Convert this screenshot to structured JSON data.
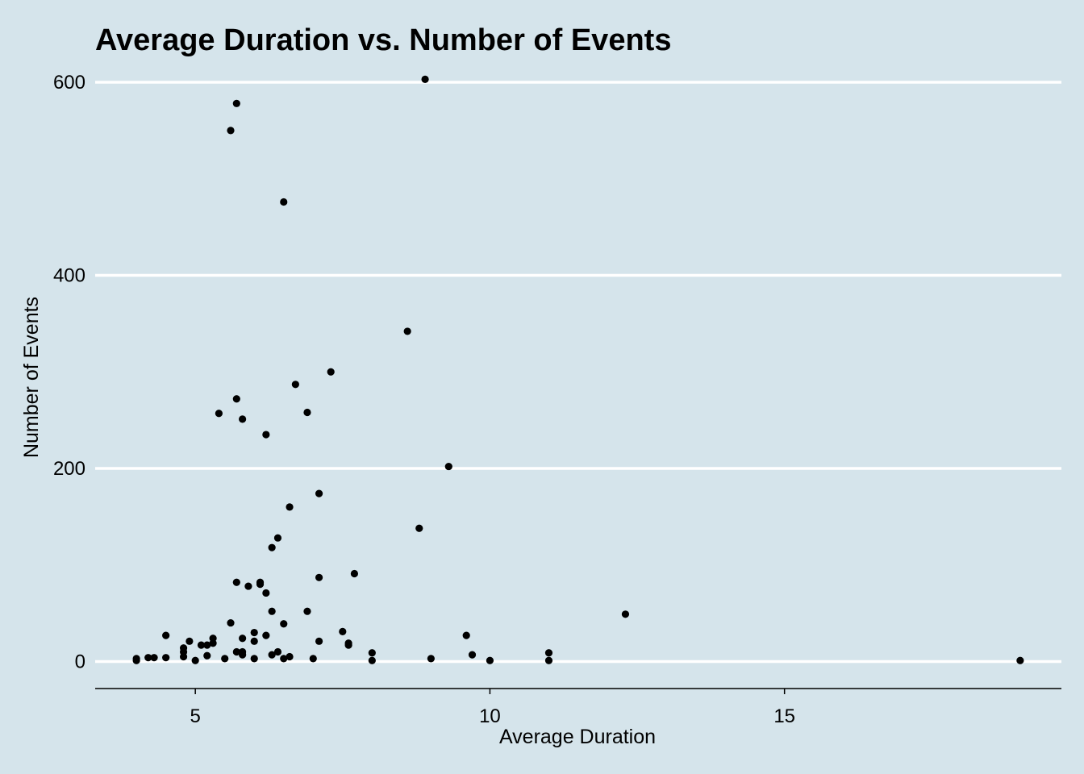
{
  "chart_data": {
    "type": "scatter",
    "title": "Average Duration vs. Number of Events",
    "xlabel": "Average Duration",
    "ylabel": "Number of Events",
    "xlim": [
      3.3,
      19.7
    ],
    "ylim": [
      -28,
      610
    ],
    "xticks": [
      5,
      10,
      15
    ],
    "yticks": [
      0,
      200,
      400,
      600
    ],
    "grid": "horizontal-major",
    "colors": {
      "background": "#d5e4eb",
      "grid": "#ffffff",
      "point": "#000000",
      "axis": "#000000"
    },
    "points": [
      {
        "x": 4.0,
        "y": 3
      },
      {
        "x": 4.0,
        "y": 1
      },
      {
        "x": 4.2,
        "y": 4
      },
      {
        "x": 4.3,
        "y": 4
      },
      {
        "x": 4.5,
        "y": 4
      },
      {
        "x": 4.5,
        "y": 27
      },
      {
        "x": 4.8,
        "y": 5
      },
      {
        "x": 4.8,
        "y": 10
      },
      {
        "x": 4.8,
        "y": 14
      },
      {
        "x": 4.9,
        "y": 21
      },
      {
        "x": 5.0,
        "y": 1
      },
      {
        "x": 5.1,
        "y": 17
      },
      {
        "x": 5.2,
        "y": 6
      },
      {
        "x": 5.2,
        "y": 17
      },
      {
        "x": 5.3,
        "y": 19
      },
      {
        "x": 5.3,
        "y": 24
      },
      {
        "x": 5.4,
        "y": 257
      },
      {
        "x": 5.5,
        "y": 3
      },
      {
        "x": 5.6,
        "y": 40
      },
      {
        "x": 5.6,
        "y": 550
      },
      {
        "x": 5.7,
        "y": 10
      },
      {
        "x": 5.7,
        "y": 82
      },
      {
        "x": 5.7,
        "y": 272
      },
      {
        "x": 5.7,
        "y": 578
      },
      {
        "x": 5.8,
        "y": 7
      },
      {
        "x": 5.8,
        "y": 10
      },
      {
        "x": 5.8,
        "y": 24
      },
      {
        "x": 5.8,
        "y": 251
      },
      {
        "x": 5.9,
        "y": 78
      },
      {
        "x": 6.0,
        "y": 3
      },
      {
        "x": 6.0,
        "y": 21
      },
      {
        "x": 6.0,
        "y": 30
      },
      {
        "x": 6.1,
        "y": 80
      },
      {
        "x": 6.1,
        "y": 82
      },
      {
        "x": 6.2,
        "y": 27
      },
      {
        "x": 6.2,
        "y": 71
      },
      {
        "x": 6.2,
        "y": 235
      },
      {
        "x": 6.3,
        "y": 7
      },
      {
        "x": 6.3,
        "y": 52
      },
      {
        "x": 6.3,
        "y": 118
      },
      {
        "x": 6.4,
        "y": 10
      },
      {
        "x": 6.4,
        "y": 128
      },
      {
        "x": 6.5,
        "y": 3
      },
      {
        "x": 6.5,
        "y": 39
      },
      {
        "x": 6.5,
        "y": 476
      },
      {
        "x": 6.6,
        "y": 5
      },
      {
        "x": 6.6,
        "y": 160
      },
      {
        "x": 6.7,
        "y": 287
      },
      {
        "x": 6.9,
        "y": 52
      },
      {
        "x": 6.9,
        "y": 258
      },
      {
        "x": 7.0,
        "y": 3
      },
      {
        "x": 7.1,
        "y": 21
      },
      {
        "x": 7.1,
        "y": 87
      },
      {
        "x": 7.1,
        "y": 174
      },
      {
        "x": 7.3,
        "y": 300
      },
      {
        "x": 7.5,
        "y": 31
      },
      {
        "x": 7.6,
        "y": 17
      },
      {
        "x": 7.6,
        "y": 19
      },
      {
        "x": 7.7,
        "y": 91
      },
      {
        "x": 8.0,
        "y": 1
      },
      {
        "x": 8.0,
        "y": 9
      },
      {
        "x": 8.6,
        "y": 342
      },
      {
        "x": 8.8,
        "y": 138
      },
      {
        "x": 8.9,
        "y": 603
      },
      {
        "x": 9.0,
        "y": 3
      },
      {
        "x": 9.3,
        "y": 202
      },
      {
        "x": 9.6,
        "y": 27
      },
      {
        "x": 9.7,
        "y": 7
      },
      {
        "x": 10.0,
        "y": 1
      },
      {
        "x": 11.0,
        "y": 1
      },
      {
        "x": 11.0,
        "y": 9
      },
      {
        "x": 12.3,
        "y": 49
      },
      {
        "x": 19.0,
        "y": 1
      }
    ]
  }
}
